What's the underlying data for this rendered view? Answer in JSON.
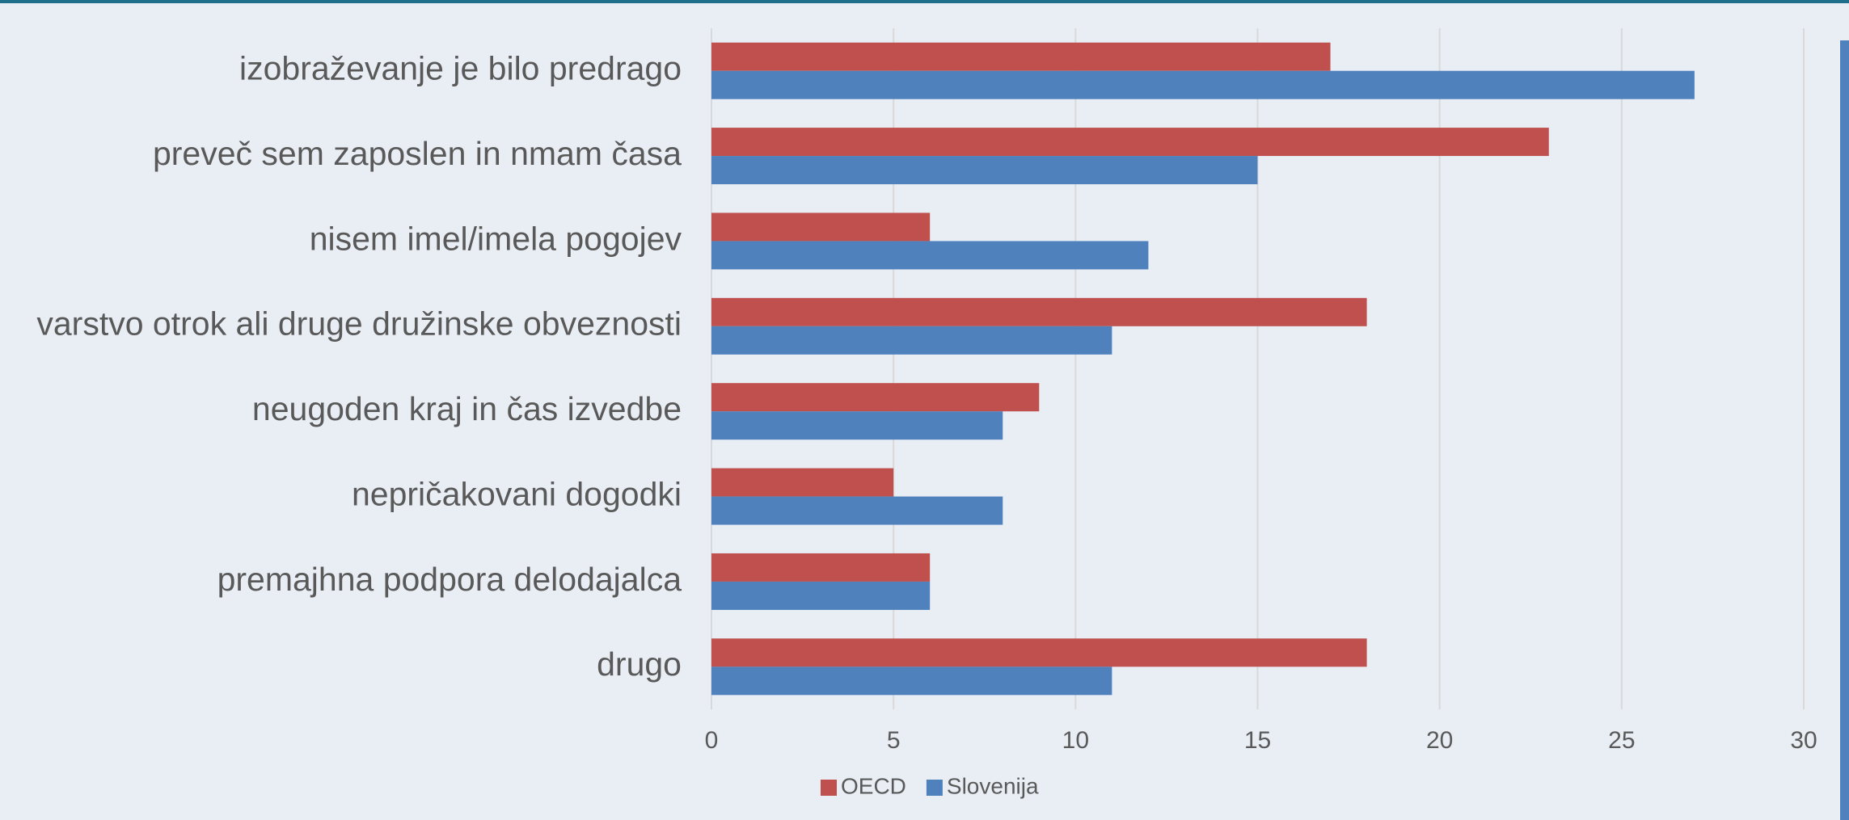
{
  "chart_data": {
    "type": "bar",
    "orientation": "horizontal",
    "categories": [
      "izobraževanje je bilo predrago",
      "preveč sem zaposlen in nmam časa",
      "nisem imel/imela pogojev",
      "varstvo otrok ali druge družinske obveznosti",
      "neugoden kraj in čas izvedbe",
      "nepričakovani dogodki",
      "premajhna podpora delodajalca",
      "drugo"
    ],
    "series": [
      {
        "name": "OECD",
        "color": "#c0504d",
        "values": [
          17,
          23,
          6,
          18,
          9,
          5,
          6,
          18
        ]
      },
      {
        "name": "Slovenija",
        "color": "#4f81bd",
        "values": [
          27,
          15,
          12,
          11,
          8,
          8,
          6,
          11
        ]
      }
    ],
    "xlim": [
      0,
      30
    ],
    "xticks": [
      0,
      5,
      10,
      15,
      20,
      25,
      30
    ],
    "grid": true,
    "legend": "bottom"
  }
}
